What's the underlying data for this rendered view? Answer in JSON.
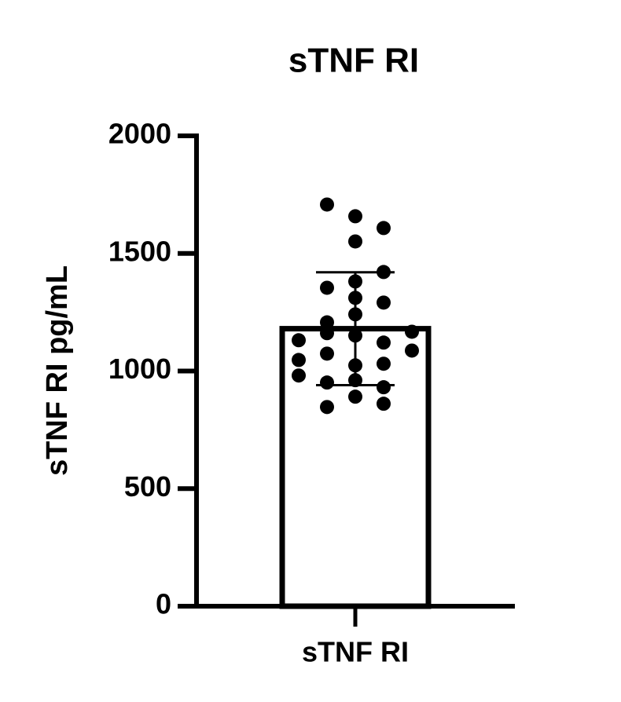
{
  "chart_data": {
    "type": "bar",
    "title": "sTNF RI",
    "ylabel": "sTNF RI pg/mL",
    "categories": [
      "sTNF RI"
    ],
    "values": [
      1180
    ],
    "errors": [
      240
    ],
    "points": [
      1708,
      1658,
      1608,
      1551,
      1421,
      1381,
      1354,
      1311,
      1291,
      1241,
      1207,
      1131,
      1161,
      1151,
      1121,
      1167,
      1087,
      1047,
      1074,
      1024,
      1031,
      981,
      951,
      961,
      931,
      891,
      847,
      861
    ],
    "ylim": [
      0,
      2000
    ],
    "yticks": [
      0,
      500,
      1000,
      1500,
      2000
    ],
    "color": "#ffffff",
    "point_color": "#000000"
  }
}
